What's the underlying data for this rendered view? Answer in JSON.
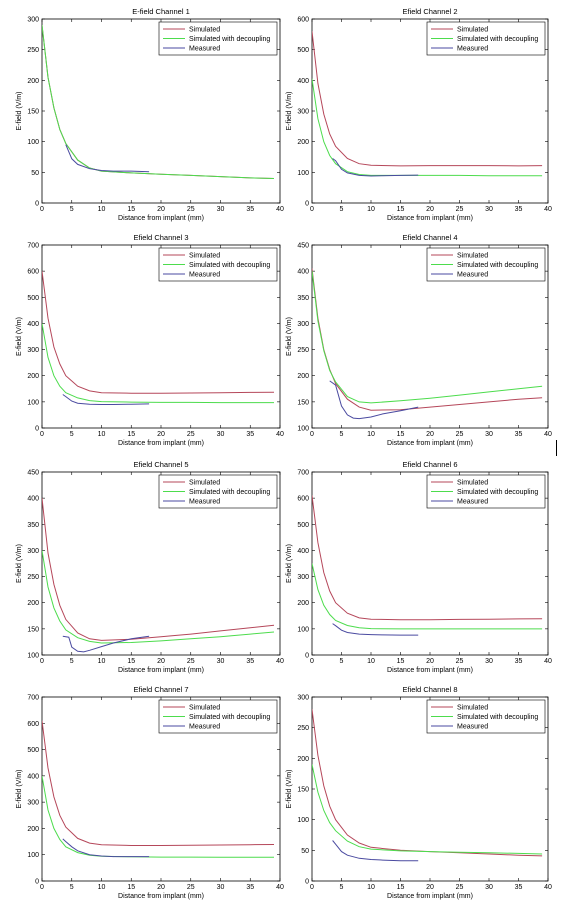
{
  "colors": {
    "simulated": "#b5475a",
    "decoupled": "#4ddc4d",
    "measured": "#4a4aa0",
    "axis": "#000000"
  },
  "chart_data": [
    {
      "type": "line",
      "title": "E-field Channel 1",
      "xlabel": "Distance from implant (mm)",
      "ylabel": "E-field (V/m)",
      "xlim": [
        0,
        40
      ],
      "ylim": [
        0,
        300
      ],
      "xticks": [
        0,
        5,
        10,
        15,
        20,
        25,
        30,
        35,
        40
      ],
      "yticks": [
        0,
        50,
        100,
        150,
        200,
        250,
        300
      ],
      "legend": "top-right",
      "series": [
        {
          "name": "Simulated",
          "color_key": "simulated",
          "x": [
            0,
            1,
            2,
            3,
            4,
            6,
            8,
            10,
            15,
            20,
            25,
            30,
            35,
            39
          ],
          "y": [
            290,
            205,
            155,
            120,
            97,
            70,
            57,
            52,
            49,
            47,
            45,
            43,
            41,
            40
          ]
        },
        {
          "name": "Simulated with  decoupling",
          "color_key": "decoupled",
          "x": [
            0,
            1,
            2,
            3,
            4,
            6,
            8,
            10,
            15,
            20,
            25,
            30,
            35,
            39
          ],
          "y": [
            290,
            205,
            155,
            120,
            97,
            70,
            57,
            52,
            49,
            47,
            45,
            43,
            41,
            40
          ]
        },
        {
          "name": "Measured",
          "color_key": "measured",
          "x": [
            4,
            5,
            6,
            8,
            10,
            12,
            15,
            18
          ],
          "y": [
            95,
            72,
            63,
            56,
            53,
            52,
            52,
            51
          ]
        }
      ]
    },
    {
      "type": "line",
      "title": "Efield Channel 2",
      "xlabel": "Distance from implant (mm)",
      "ylabel": "E-field (V/m)",
      "xlim": [
        0,
        40
      ],
      "ylim": [
        0,
        600
      ],
      "xticks": [
        0,
        5,
        10,
        15,
        20,
        25,
        30,
        35,
        40
      ],
      "yticks": [
        0,
        100,
        200,
        300,
        400,
        500,
        600
      ],
      "legend": "top-right",
      "series": [
        {
          "name": "Simulated",
          "color_key": "simulated",
          "x": [
            0,
            1,
            2,
            3,
            4,
            6,
            8,
            10,
            15,
            20,
            25,
            30,
            35,
            39
          ],
          "y": [
            560,
            390,
            290,
            225,
            185,
            145,
            128,
            123,
            121,
            122,
            122,
            122,
            121,
            122
          ]
        },
        {
          "name": "Simulated with  decoupling",
          "color_key": "decoupled",
          "x": [
            0,
            1,
            2,
            3,
            4,
            6,
            8,
            10,
            15,
            20,
            25,
            30,
            35,
            39
          ],
          "y": [
            405,
            275,
            200,
            155,
            128,
            102,
            93,
            90,
            90,
            90,
            90,
            89,
            89,
            89
          ]
        },
        {
          "name": "Measured",
          "color_key": "measured",
          "x": [
            3.5,
            4,
            5,
            6,
            8,
            10,
            12,
            15,
            18
          ],
          "y": [
            145,
            138,
            110,
            98,
            90,
            88,
            89,
            90,
            91
          ]
        }
      ]
    },
    {
      "type": "line",
      "title": "Efield Channel 3",
      "xlabel": "Distance from implant (mm)",
      "ylabel": "E-field (V/m)",
      "xlim": [
        0,
        40
      ],
      "ylim": [
        0,
        700
      ],
      "xticks": [
        0,
        5,
        10,
        15,
        20,
        25,
        30,
        35,
        40
      ],
      "yticks": [
        0,
        100,
        200,
        300,
        400,
        500,
        600,
        700
      ],
      "legend": "top-right",
      "series": [
        {
          "name": "Simulated",
          "color_key": "simulated",
          "x": [
            0,
            1,
            2,
            3,
            4,
            6,
            8,
            10,
            15,
            20,
            25,
            30,
            35,
            39
          ],
          "y": [
            600,
            420,
            310,
            245,
            200,
            160,
            142,
            135,
            133,
            133,
            134,
            135,
            136,
            137
          ]
        },
        {
          "name": "Simulated with  decoupling",
          "color_key": "decoupled",
          "x": [
            0,
            1,
            2,
            3,
            4,
            6,
            8,
            10,
            15,
            20,
            25,
            30,
            35,
            39
          ],
          "y": [
            400,
            270,
            200,
            160,
            135,
            115,
            105,
            101,
            99,
            98,
            98,
            97,
            97,
            97
          ]
        },
        {
          "name": "Measured",
          "color_key": "measured",
          "x": [
            3.5,
            4,
            5,
            6,
            8,
            10,
            12,
            15,
            18
          ],
          "y": [
            128,
            120,
            103,
            95,
            91,
            90,
            90,
            91,
            92
          ]
        }
      ]
    },
    {
      "type": "line",
      "title": "Efield Channel 4",
      "xlabel": "Distance from implant (mm)",
      "ylabel": "E-field (V/m)",
      "xlim": [
        0,
        40
      ],
      "ylim": [
        100,
        450
      ],
      "xticks": [
        0,
        5,
        10,
        15,
        20,
        25,
        30,
        35,
        40
      ],
      "yticks": [
        100,
        150,
        200,
        250,
        300,
        350,
        400,
        450
      ],
      "legend": "top-right",
      "series": [
        {
          "name": "Simulated",
          "color_key": "simulated",
          "x": [
            0,
            1,
            2,
            3,
            4,
            6,
            8,
            10,
            15,
            20,
            25,
            30,
            35,
            39
          ],
          "y": [
            405,
            310,
            250,
            212,
            185,
            155,
            140,
            134,
            135,
            140,
            145,
            150,
            155,
            158
          ]
        },
        {
          "name": "Simulated with  decoupling",
          "color_key": "decoupled",
          "x": [
            0,
            1,
            2,
            3,
            4,
            6,
            8,
            10,
            15,
            20,
            25,
            30,
            35,
            39
          ],
          "y": [
            400,
            305,
            248,
            210,
            188,
            160,
            150,
            148,
            152,
            157,
            163,
            169,
            175,
            180
          ]
        },
        {
          "name": "Measured",
          "color_key": "measured",
          "x": [
            3,
            4,
            5,
            6,
            7,
            8,
            10,
            12,
            15,
            18
          ],
          "y": [
            190,
            182,
            142,
            125,
            119,
            118,
            121,
            127,
            133,
            140
          ]
        }
      ]
    },
    {
      "type": "line",
      "title": "Efield Channel 5",
      "xlabel": "Distance from implant (mm)",
      "ylabel": "E-field (V/m)",
      "xlim": [
        0,
        40
      ],
      "ylim": [
        100,
        450
      ],
      "xticks": [
        0,
        5,
        10,
        15,
        20,
        25,
        30,
        35,
        40
      ],
      "yticks": [
        100,
        150,
        200,
        250,
        300,
        350,
        400,
        450
      ],
      "legend": "top-right",
      "series": [
        {
          "name": "Simulated",
          "color_key": "simulated",
          "x": [
            0,
            1,
            2,
            3,
            4,
            6,
            8,
            10,
            15,
            20,
            25,
            30,
            35,
            39
          ],
          "y": [
            400,
            295,
            235,
            195,
            168,
            142,
            131,
            128,
            130,
            135,
            140,
            146,
            152,
            157
          ]
        },
        {
          "name": "Simulated with  decoupling",
          "color_key": "decoupled",
          "x": [
            0,
            1,
            2,
            3,
            4,
            6,
            8,
            10,
            15,
            20,
            25,
            30,
            35,
            39
          ],
          "y": [
            300,
            230,
            190,
            165,
            148,
            133,
            126,
            123,
            124,
            127,
            131,
            135,
            140,
            144
          ]
        },
        {
          "name": "Measured",
          "color_key": "measured",
          "x": [
            3.5,
            4.5,
            5,
            6,
            7,
            8,
            10,
            12,
            15,
            18
          ],
          "y": [
            136,
            134,
            115,
            107,
            106,
            109,
            116,
            123,
            131,
            136
          ]
        }
      ]
    },
    {
      "type": "line",
      "title": "Efield Channel 6",
      "xlabel": "Distance from implant (mm)",
      "ylabel": "E-field (V/m)",
      "xlim": [
        0,
        40
      ],
      "ylim": [
        0,
        700
      ],
      "xticks": [
        0,
        5,
        10,
        15,
        20,
        25,
        30,
        35,
        40
      ],
      "yticks": [
        0,
        100,
        200,
        300,
        400,
        500,
        600,
        700
      ],
      "legend": "top-right",
      "series": [
        {
          "name": "Simulated",
          "color_key": "simulated",
          "x": [
            0,
            1,
            2,
            3,
            4,
            6,
            8,
            10,
            15,
            20,
            25,
            30,
            35,
            39
          ],
          "y": [
            610,
            430,
            315,
            245,
            200,
            160,
            142,
            137,
            135,
            135,
            136,
            137,
            138,
            139
          ]
        },
        {
          "name": "Simulated with  decoupling",
          "color_key": "decoupled",
          "x": [
            0,
            1,
            2,
            3,
            4,
            6,
            8,
            10,
            15,
            20,
            25,
            30,
            35,
            39
          ],
          "y": [
            350,
            250,
            190,
            155,
            132,
            113,
            104,
            101,
            100,
            100,
            100,
            100,
            100,
            100
          ]
        },
        {
          "name": "Measured",
          "color_key": "measured",
          "x": [
            3.5,
            4,
            5,
            6,
            8,
            10,
            12,
            15,
            18
          ],
          "y": [
            120,
            112,
            95,
            86,
            80,
            78,
            77,
            76,
            76
          ]
        }
      ]
    },
    {
      "type": "line",
      "title": "Efield Channel 7",
      "xlabel": "Distance from implant (mm)",
      "ylabel": "E-field (V/m)",
      "xlim": [
        0,
        40
      ],
      "ylim": [
        0,
        700
      ],
      "xticks": [
        0,
        5,
        10,
        15,
        20,
        25,
        30,
        35,
        40
      ],
      "yticks": [
        0,
        100,
        200,
        300,
        400,
        500,
        600,
        700
      ],
      "legend": "top-right",
      "series": [
        {
          "name": "Simulated",
          "color_key": "simulated",
          "x": [
            0,
            1,
            2,
            3,
            4,
            6,
            8,
            10,
            15,
            20,
            25,
            30,
            35,
            39
          ],
          "y": [
            610,
            430,
            320,
            250,
            205,
            162,
            144,
            138,
            135,
            135,
            136,
            137,
            138,
            139
          ]
        },
        {
          "name": "Simulated with  decoupling",
          "color_key": "decoupled",
          "x": [
            0,
            1,
            2,
            3,
            4,
            6,
            8,
            10,
            15,
            20,
            25,
            30,
            35,
            39
          ],
          "y": [
            400,
            270,
            200,
            158,
            130,
            108,
            98,
            94,
            92,
            91,
            91,
            90,
            90,
            90
          ]
        },
        {
          "name": "Measured",
          "color_key": "measured",
          "x": [
            3.5,
            4,
            5,
            6,
            8,
            10,
            12,
            15,
            18
          ],
          "y": [
            160,
            150,
            130,
            115,
            100,
            95,
            93,
            93,
            93
          ]
        }
      ]
    },
    {
      "type": "line",
      "title": "Efield Channel 8",
      "xlabel": "Distance from implant (mm)",
      "ylabel": "E-field (V/m)",
      "xlim": [
        0,
        40
      ],
      "ylim": [
        0,
        300
      ],
      "xticks": [
        0,
        5,
        10,
        15,
        20,
        25,
        30,
        35,
        40
      ],
      "yticks": [
        0,
        50,
        100,
        150,
        200,
        250,
        300
      ],
      "legend": "top-right",
      "series": [
        {
          "name": "Simulated",
          "color_key": "simulated",
          "x": [
            0,
            1,
            2,
            3,
            4,
            6,
            8,
            10,
            15,
            20,
            25,
            30,
            35,
            39
          ],
          "y": [
            280,
            205,
            155,
            122,
            100,
            75,
            62,
            55,
            50,
            48,
            46,
            44,
            42,
            41
          ]
        },
        {
          "name": "Simulated with  decoupling",
          "color_key": "decoupled",
          "x": [
            0,
            1,
            2,
            3,
            4,
            6,
            8,
            10,
            15,
            20,
            25,
            30,
            35,
            39
          ],
          "y": [
            190,
            145,
            115,
            95,
            82,
            65,
            56,
            52,
            49,
            48,
            47,
            46,
            45,
            44
          ]
        },
        {
          "name": "Measured",
          "color_key": "measured",
          "x": [
            3.5,
            4,
            5,
            6,
            8,
            10,
            12,
            15,
            18
          ],
          "y": [
            66,
            60,
            48,
            42,
            37,
            35,
            34,
            33,
            33
          ]
        }
      ]
    }
  ]
}
